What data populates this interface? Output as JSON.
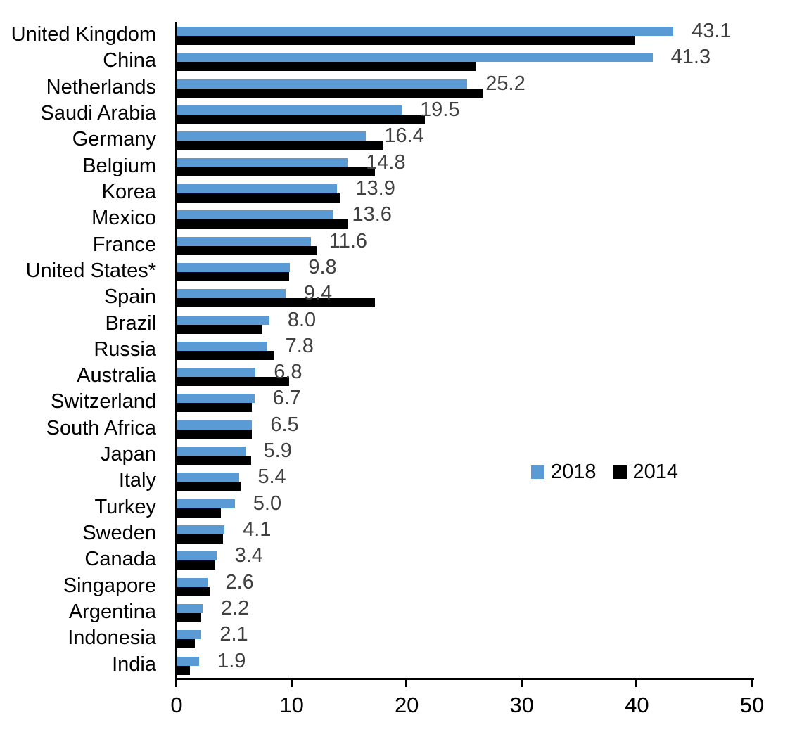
{
  "page": {
    "background": "#ffffff"
  },
  "chart_data": {
    "type": "bar",
    "orientation": "horizontal",
    "title": "",
    "xlabel": "",
    "ylabel": "",
    "xlim": [
      0,
      50
    ],
    "x_ticks": [
      0,
      10,
      20,
      30,
      40,
      50
    ],
    "grid": false,
    "legend_position": "middle-right",
    "value_label_color": "#404040",
    "axis_color": "#000000",
    "categories": [
      "United Kingdom",
      "China",
      "Netherlands",
      "Saudi Arabia",
      "Germany",
      "Belgium",
      "Korea",
      "Mexico",
      "France",
      "United States*",
      "Spain",
      "Brazil",
      "Russia",
      "Australia",
      "Switzerland",
      "South Africa",
      "Japan",
      "Italy",
      "Turkey",
      "Sweden",
      "Canada",
      "Singapore",
      "Argentina",
      "Indonesia",
      "India"
    ],
    "series": [
      {
        "name": "2018",
        "color": "#5B9BD5",
        "values": [
          43.1,
          41.3,
          25.2,
          19.5,
          16.4,
          14.8,
          13.9,
          13.6,
          11.6,
          9.8,
          9.4,
          8.0,
          7.8,
          6.8,
          6.7,
          6.5,
          5.9,
          5.4,
          5.0,
          4.1,
          3.4,
          2.6,
          2.2,
          2.1,
          1.9
        ]
      },
      {
        "name": "2014",
        "color": "#000000",
        "values": [
          39.8,
          25.9,
          26.5,
          21.5,
          17.9,
          17.2,
          14.1,
          14.8,
          12.1,
          9.7,
          17.2,
          7.4,
          8.4,
          9.7,
          6.5,
          6.5,
          6.4,
          5.5,
          3.8,
          4.0,
          3.3,
          2.8,
          2.1,
          1.5,
          1.1
        ]
      }
    ],
    "value_labels": [
      "43.1",
      "41.3",
      "25.2",
      "19.5",
      "16.4",
      "14.8",
      "13.9",
      "13.6",
      "11.6",
      "9.8",
      "9.4",
      "8.0",
      "7.8",
      "6.8",
      "6.7",
      "6.5",
      "5.9",
      "5.4",
      "5.0",
      "4.1",
      "3.4",
      "2.6",
      "2.2",
      "2.1",
      "1.9"
    ],
    "x_tick_labels": [
      "0",
      "10",
      "20",
      "30",
      "40",
      "50"
    ]
  }
}
